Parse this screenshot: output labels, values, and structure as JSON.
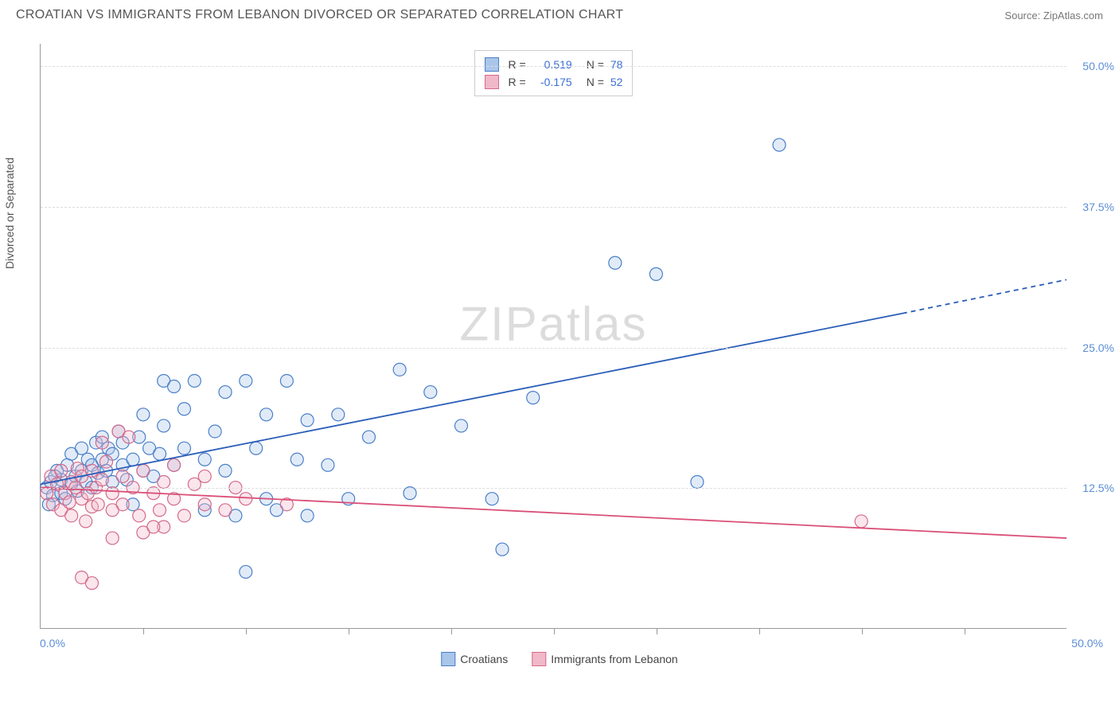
{
  "title": "CROATIAN VS IMMIGRANTS FROM LEBANON DIVORCED OR SEPARATED CORRELATION CHART",
  "source_label": "Source:",
  "source_name": "ZipAtlas.com",
  "y_axis_label": "Divorced or Separated",
  "watermark": {
    "part1": "ZIP",
    "part2": "atlas"
  },
  "chart": {
    "type": "scatter",
    "xlim": [
      0,
      50
    ],
    "ylim": [
      0,
      52
    ],
    "x_tick_positions_pct": [
      10,
      20,
      30,
      40,
      50,
      60,
      70,
      80,
      90
    ],
    "y_gridlines": [
      12.5,
      25.0,
      37.5,
      50.0
    ],
    "y_tick_labels": [
      "12.5%",
      "25.0%",
      "37.5%",
      "50.0%"
    ],
    "x_origin_label": "0.0%",
    "x_end_label": "50.0%",
    "background_color": "#ffffff",
    "grid_color": "#dddddd",
    "axis_color": "#999999",
    "marker_radius": 8,
    "marker_stroke_width": 1.2,
    "marker_fill_opacity": 0.35,
    "trend_line_width": 1.8,
    "series": [
      {
        "key": "croatians",
        "label": "Croatians",
        "color_stroke": "#4a7fc9",
        "color_fill": "#a9c6ea",
        "R_label": "R =",
        "R_value": "0.519",
        "N_label": "N =",
        "N_value": "78",
        "trend_line": {
          "x1": 0,
          "y1": 12.8,
          "x2": 42,
          "y2": 28.0,
          "dash_x2": 50,
          "dash_y2": 31.0,
          "color": "#2a5db8"
        },
        "points": [
          [
            0.3,
            12.5
          ],
          [
            0.5,
            13.0
          ],
          [
            0.6,
            11.8
          ],
          [
            0.8,
            14.0
          ],
          [
            1.0,
            12.0
          ],
          [
            1.0,
            13.2
          ],
          [
            1.2,
            11.5
          ],
          [
            1.3,
            14.5
          ],
          [
            1.5,
            12.8
          ],
          [
            1.5,
            15.5
          ],
          [
            1.7,
            13.5
          ],
          [
            1.8,
            12.2
          ],
          [
            2.0,
            14.0
          ],
          [
            2.0,
            16.0
          ],
          [
            2.2,
            13.0
          ],
          [
            2.3,
            15.0
          ],
          [
            2.5,
            12.5
          ],
          [
            2.5,
            14.5
          ],
          [
            2.7,
            16.5
          ],
          [
            2.8,
            13.8
          ],
          [
            3.0,
            15.0
          ],
          [
            3.0,
            17.0
          ],
          [
            3.2,
            14.0
          ],
          [
            3.3,
            16.0
          ],
          [
            3.5,
            13.0
          ],
          [
            3.5,
            15.5
          ],
          [
            3.8,
            17.5
          ],
          [
            4.0,
            14.5
          ],
          [
            4.0,
            16.5
          ],
          [
            4.2,
            13.2
          ],
          [
            4.5,
            15.0
          ],
          [
            4.5,
            11.0
          ],
          [
            4.8,
            17.0
          ],
          [
            5.0,
            14.0
          ],
          [
            5.0,
            19.0
          ],
          [
            5.3,
            16.0
          ],
          [
            5.5,
            13.5
          ],
          [
            5.8,
            15.5
          ],
          [
            6.0,
            18.0
          ],
          [
            6.0,
            22.0
          ],
          [
            6.5,
            14.5
          ],
          [
            6.5,
            21.5
          ],
          [
            7.0,
            16.0
          ],
          [
            7.0,
            19.5
          ],
          [
            7.5,
            22.0
          ],
          [
            8.0,
            15.0
          ],
          [
            8.0,
            10.5
          ],
          [
            8.5,
            17.5
          ],
          [
            9.0,
            21.0
          ],
          [
            9.0,
            14.0
          ],
          [
            9.5,
            10.0
          ],
          [
            10.0,
            22.0
          ],
          [
            10.0,
            5.0
          ],
          [
            10.5,
            16.0
          ],
          [
            11.0,
            19.0
          ],
          [
            11.0,
            11.5
          ],
          [
            11.5,
            10.5
          ],
          [
            12.0,
            22.0
          ],
          [
            12.5,
            15.0
          ],
          [
            13.0,
            18.5
          ],
          [
            13.0,
            10.0
          ],
          [
            14.0,
            14.5
          ],
          [
            14.5,
            19.0
          ],
          [
            15.0,
            11.5
          ],
          [
            16.0,
            17.0
          ],
          [
            17.5,
            23.0
          ],
          [
            18.0,
            12.0
          ],
          [
            19.0,
            21.0
          ],
          [
            20.5,
            18.0
          ],
          [
            22.0,
            11.5
          ],
          [
            22.5,
            7.0
          ],
          [
            24.0,
            20.5
          ],
          [
            28.0,
            32.5
          ],
          [
            30.0,
            31.5
          ],
          [
            32.0,
            13.0
          ],
          [
            36.0,
            43.0
          ],
          [
            0.4,
            11.0
          ],
          [
            0.7,
            13.5
          ]
        ]
      },
      {
        "key": "lebanon",
        "label": "Immigrants from Lebanon",
        "color_stroke": "#d46a8a",
        "color_fill": "#f1b8c9",
        "R_label": "R =",
        "R_value": "-0.175",
        "N_label": "N =",
        "N_value": "52",
        "trend_line": {
          "x1": 0,
          "y1": 12.5,
          "x2": 50,
          "y2": 8.0,
          "color": "#d94f78"
        },
        "points": [
          [
            0.3,
            12.0
          ],
          [
            0.5,
            13.5
          ],
          [
            0.6,
            11.0
          ],
          [
            0.8,
            12.8
          ],
          [
            1.0,
            10.5
          ],
          [
            1.0,
            14.0
          ],
          [
            1.2,
            12.0
          ],
          [
            1.4,
            11.2
          ],
          [
            1.5,
            13.0
          ],
          [
            1.5,
            10.0
          ],
          [
            1.7,
            12.5
          ],
          [
            1.8,
            14.2
          ],
          [
            2.0,
            11.5
          ],
          [
            2.0,
            13.5
          ],
          [
            2.2,
            9.5
          ],
          [
            2.3,
            12.0
          ],
          [
            2.5,
            10.8
          ],
          [
            2.5,
            14.0
          ],
          [
            2.7,
            12.5
          ],
          [
            2.8,
            11.0
          ],
          [
            3.0,
            13.2
          ],
          [
            3.0,
            16.5
          ],
          [
            3.2,
            14.8
          ],
          [
            3.5,
            12.0
          ],
          [
            3.5,
            10.5
          ],
          [
            3.8,
            17.5
          ],
          [
            4.0,
            13.5
          ],
          [
            4.0,
            11.0
          ],
          [
            4.3,
            17.0
          ],
          [
            4.5,
            12.5
          ],
          [
            4.8,
            10.0
          ],
          [
            5.0,
            14.0
          ],
          [
            5.0,
            8.5
          ],
          [
            5.5,
            12.0
          ],
          [
            5.8,
            10.5
          ],
          [
            6.0,
            13.0
          ],
          [
            6.0,
            9.0
          ],
          [
            6.5,
            11.5
          ],
          [
            6.5,
            14.5
          ],
          [
            7.0,
            10.0
          ],
          [
            7.5,
            12.8
          ],
          [
            8.0,
            11.0
          ],
          [
            8.0,
            13.5
          ],
          [
            9.0,
            10.5
          ],
          [
            9.5,
            12.5
          ],
          [
            10.0,
            11.5
          ],
          [
            12.0,
            11.0
          ],
          [
            2.0,
            4.5
          ],
          [
            2.5,
            4.0
          ],
          [
            3.5,
            8.0
          ],
          [
            5.5,
            9.0
          ],
          [
            40.0,
            9.5
          ]
        ]
      }
    ]
  }
}
